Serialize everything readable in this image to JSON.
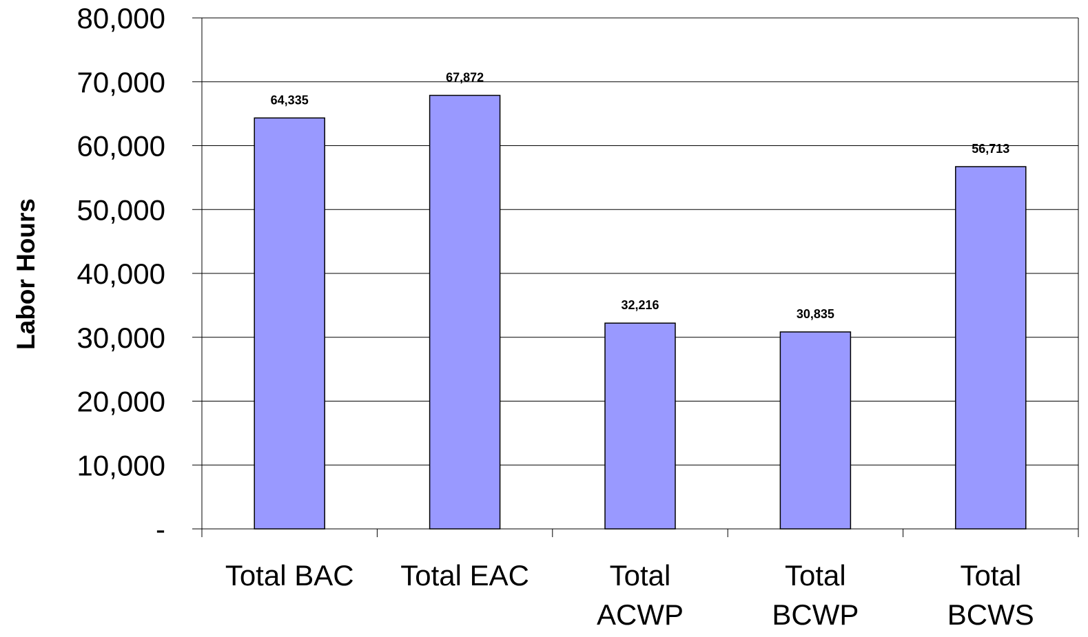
{
  "chart_data": {
    "type": "bar",
    "title": "",
    "xlabel": "",
    "ylabel": "Labor Hours",
    "categories": [
      [
        "Total BAC"
      ],
      [
        "Total EAC"
      ],
      [
        "Total",
        "ACWP"
      ],
      [
        "Total",
        "BCWP"
      ],
      [
        "Total",
        "BCWS"
      ]
    ],
    "values": [
      64335,
      67872,
      32216,
      30835,
      56713
    ],
    "data_labels": [
      "64,335",
      "67,872",
      "32,216",
      "30,835",
      "56,713"
    ],
    "ylim": [
      0,
      80000
    ],
    "yticks": [
      0,
      10000,
      20000,
      30000,
      40000,
      50000,
      60000,
      70000,
      80000
    ],
    "ytick_labels": [
      "-",
      "10,000",
      "20,000",
      "30,000",
      "40,000",
      "50,000",
      "60,000",
      "70,000",
      "80,000"
    ],
    "grid": true,
    "legend": "none",
    "colors": {
      "bar_fill": "#9999ff",
      "bar_stroke": "#000000",
      "gridline": "#000000",
      "text": "#000000"
    }
  }
}
